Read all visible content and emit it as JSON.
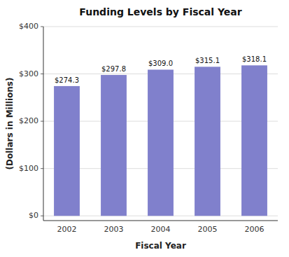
{
  "chart_data": {
    "type": "bar",
    "title": "Funding Levels by Fiscal Year",
    "xlabel": "Fiscal Year",
    "ylabel": "(Dollars in Millions)",
    "categories": [
      "2002",
      "2003",
      "2004",
      "2005",
      "2006"
    ],
    "values": [
      274.3,
      297.8,
      309.0,
      315.1,
      318.1
    ],
    "value_labels": [
      "$274.3",
      "$297.8",
      "$309.0",
      "$315.1",
      "$318.1"
    ],
    "color": "#8080CC",
    "ylim": [
      -10,
      400
    ],
    "yticks": [
      {
        "value": 0,
        "label": "$0"
      },
      {
        "value": 100,
        "label": "$100"
      },
      {
        "value": 200,
        "label": "$200"
      },
      {
        "value": 300,
        "label": "$300"
      },
      {
        "value": 400,
        "label": "$400"
      }
    ],
    "grid": true,
    "data_labels": true
  }
}
